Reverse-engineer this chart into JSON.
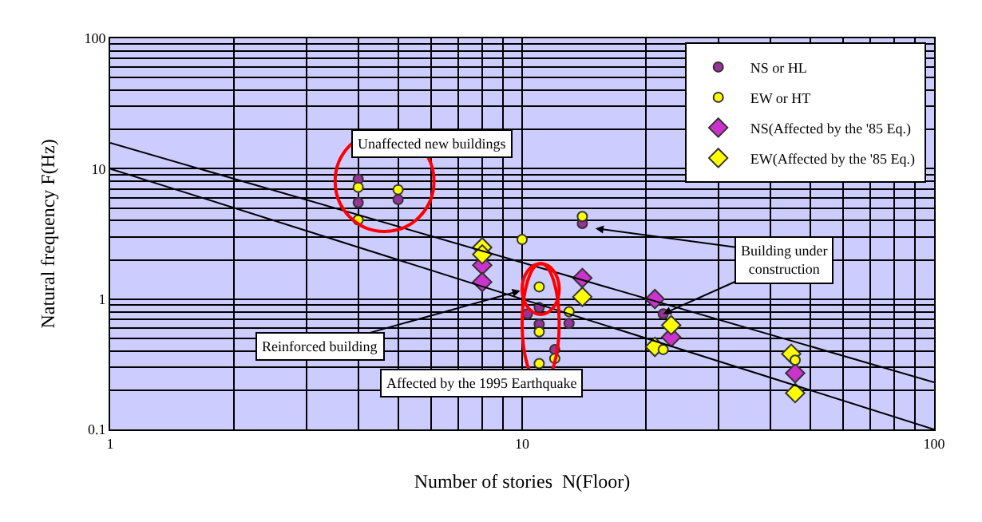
{
  "chart_data": {
    "type": "scatter",
    "xlabel": "Number of stories  N(Floor)",
    "ylabel": "Natural frequency F(Hz)",
    "log": "xy",
    "grid": true,
    "legend": "top right",
    "xlim": [
      1,
      100
    ],
    "xticks": [
      1,
      10,
      100
    ],
    "ylim": [
      0.1,
      100
    ],
    "yticks": [
      0.1,
      1,
      10,
      100
    ],
    "series": [
      {
        "name": "NS or HL",
        "color": "#993399",
        "marker": "circle",
        "x": [
          4,
          4,
          5,
          11,
          10.3,
          11,
          12,
          13,
          14,
          22
        ],
        "values": [
          8.3,
          5.5,
          5.8,
          0.86,
          0.77,
          0.64,
          0.41,
          0.65,
          3.8,
          0.77
        ]
      },
      {
        "name": "EW or HT",
        "color": "#ffff00",
        "marker": "circle",
        "x": [
          4,
          4,
          5,
          10,
          11,
          11,
          11,
          12,
          13,
          14,
          22,
          46
        ],
        "values": [
          7.2,
          4.05,
          6.9,
          2.86,
          1.24,
          0.56,
          0.32,
          0.35,
          0.8,
          4.3,
          0.41,
          0.34
        ]
      },
      {
        "name": "NS(Affected by the '85 Eq.)",
        "color": "#cc33cc",
        "marker": "diamond",
        "x": [
          8,
          8,
          14,
          21,
          23,
          46
        ],
        "values": [
          1.82,
          1.35,
          1.45,
          1.0,
          0.51,
          0.27
        ]
      },
      {
        "name": "EW(Affected by the '85 Eq.)",
        "color": "#ffff00",
        "marker": "diamond",
        "x": [
          8,
          8,
          14,
          23,
          21,
          45,
          46
        ],
        "values": [
          2.49,
          2.2,
          1.04,
          0.63,
          0.43,
          0.38,
          0.19
        ]
      },
      {
        "type": "line",
        "color": "#000000",
        "x": [
          1,
          100
        ],
        "values": [
          15.8,
          0.23
        ]
      },
      {
        "type": "line",
        "color": "#000000",
        "x": [
          1,
          100
        ],
        "values": [
          10,
          0.1
        ]
      }
    ],
    "annotations": [
      "Unaffected new buildings",
      {
        "text": "Reinforced building",
        "x": 9.9,
        "y": 1.16
      },
      "Affected by the 1995 Earthquake",
      {
        "text": "Building under construction",
        "x": 22,
        "y": 0.77
      }
    ]
  }
}
